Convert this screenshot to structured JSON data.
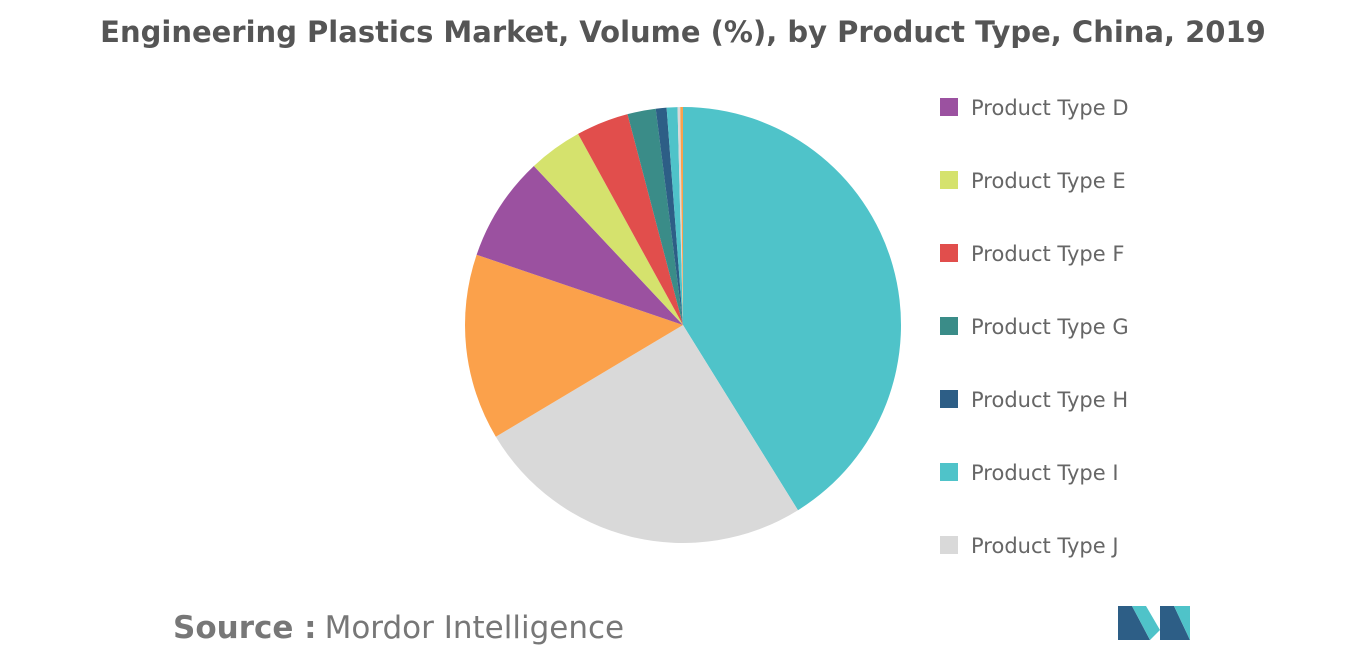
{
  "chart_data": {
    "type": "pie",
    "title": "Engineering Plastics Market, Volume (%), by Product Type, China, 2019",
    "categories": [
      null,
      null,
      null,
      "Product Type D",
      "Product Type E",
      "Product Type F",
      "Product Type G",
      "Product Type H",
      "Product Type I",
      "Product Type J",
      null
    ],
    "values": [
      41.2,
      25.3,
      13.8,
      7.8,
      4.0,
      3.9,
      2.1,
      0.8,
      0.8,
      0.2,
      0.2
    ],
    "colors": [
      "#4fc3c9",
      "#d9d9d9",
      "#fba14b",
      "#9b51a0",
      "#d5e26d",
      "#e14e4c",
      "#3a8c88",
      "#2d5e86",
      "#4fc3c9",
      "#d9d9d9",
      "#fba14b"
    ],
    "source_label": "Source :",
    "source": "Mordor Intelligence"
  }
}
